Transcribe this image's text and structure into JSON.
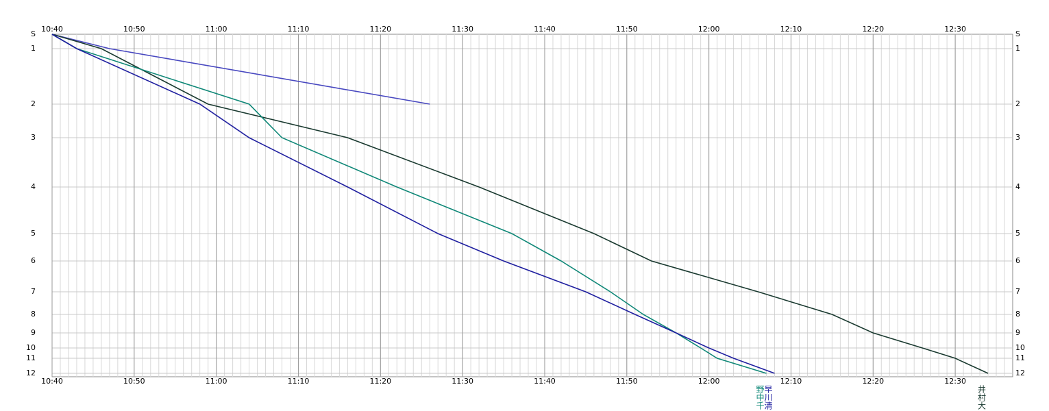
{
  "chart_data": {
    "type": "line",
    "categories": [
      "S",
      "1",
      "2",
      "3",
      "4",
      "5",
      "6",
      "7",
      "8",
      "9",
      "10",
      "11",
      "12"
    ],
    "xlim": [
      "10:40",
      "12:37"
    ],
    "xticks": [
      "10:40",
      "10:50",
      "11:00",
      "11:10",
      "11:20",
      "11:30",
      "11:40",
      "11:50",
      "12:00",
      "12:10",
      "12:20",
      "12:30"
    ],
    "grid": true,
    "series": [
      {
        "color": "#4848c0",
        "values": [
          "10:40",
          "10:47",
          "11:26",
          null,
          null,
          null,
          null,
          null,
          null,
          null,
          null,
          null,
          null
        ]
      },
      {
        "name": "井村大",
        "color": "#1a3a30",
        "values": [
          "10:40",
          "10:46",
          "10:59",
          "11:16",
          "11:32",
          "11:46",
          "11:53",
          "12:06",
          "12:15",
          "12:20",
          "12:26",
          "12:30",
          "12:34"
        ]
      },
      {
        "name": "野中千",
        "color": "#108878",
        "values": [
          "10:40",
          "10:43",
          "11:04",
          "11:08",
          "11:22",
          "11:36",
          "11:42",
          "11:48",
          "11:52",
          "11:56",
          "11:59",
          "12:01",
          "12:07"
        ]
      },
      {
        "name": "早川清",
        "color": "#2020a0",
        "values": [
          "10:40",
          "10:43",
          "10:58",
          "11:04",
          "11:16",
          "11:27",
          "11:35",
          "11:45",
          "11:51",
          "11:56",
          "12:00",
          "12:03",
          "12:08"
        ]
      }
    ]
  }
}
